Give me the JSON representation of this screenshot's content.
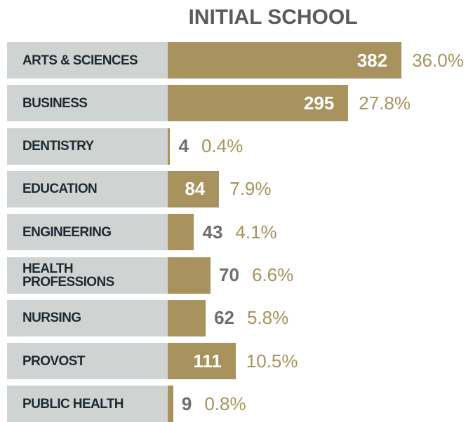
{
  "chart_data": {
    "type": "bar",
    "title": "INITIAL SCHOOL",
    "categories": [
      "ARTS & SCIENCES",
      "BUSINESS",
      "DENTISTRY",
      "EDUCATION",
      "ENGINEERING",
      "HEALTH PROFESSIONS",
      "NURSING",
      "PROVOST",
      "PUBLIC HEALTH"
    ],
    "values": [
      382,
      295,
      4,
      84,
      43,
      70,
      62,
      111,
      9
    ],
    "shares": [
      36.0,
      27.8,
      0.4,
      7.9,
      4.1,
      6.6,
      5.8,
      10.5,
      0.8
    ],
    "share_labels": [
      "36.0%",
      "27.8%",
      "0.4%",
      "7.9%",
      "4.1%",
      "6.6%",
      "5.8%",
      "10.5%",
      "0.8%"
    ],
    "color": "#a8935e",
    "label_box_color": "#cfd4d3"
  }
}
